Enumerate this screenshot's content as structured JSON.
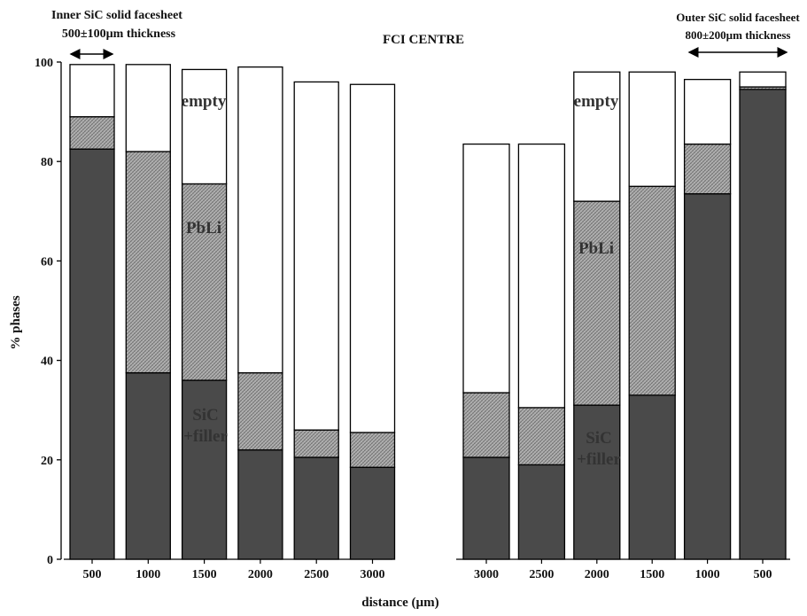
{
  "chart_data": {
    "type": "bar",
    "stacked": true,
    "title": "FCI CENTRE",
    "xlabel": "distance (µm)",
    "ylabel": "% phases",
    "ylim": [
      0,
      100
    ],
    "yticks": [
      0,
      20,
      40,
      60,
      80,
      100
    ],
    "grid": false,
    "legend": "none",
    "series_names": [
      "SiC +filler",
      "PbLi",
      "empty"
    ],
    "colors": {
      "sic": "#4a4a4a",
      "pbli": "#a8a8a8",
      "empty": "#ffffff",
      "stroke": "#000000"
    },
    "panels": [
      {
        "id": "inner",
        "categories": [
          "500",
          "1000",
          "1500",
          "2000",
          "2500",
          "3000"
        ],
        "sic": [
          82.5,
          37.5,
          36.0,
          22.0,
          20.5,
          18.5
        ],
        "pbli": [
          6.5,
          44.5,
          39.5,
          15.5,
          5.5,
          7.0
        ],
        "empty": [
          10.5,
          17.5,
          23.0,
          61.5,
          70.0,
          70.0
        ],
        "region_label": "Inner SiC solid facesheet",
        "region_sub": "500±100µm thickness"
      },
      {
        "id": "outer",
        "categories": [
          "3000",
          "2500",
          "2000",
          "1500",
          "1000",
          "500"
        ],
        "sic": [
          20.5,
          19.0,
          31.0,
          33.0,
          73.5,
          94.5
        ],
        "pbli": [
          13.0,
          11.5,
          41.0,
          42.0,
          10.0,
          0.5
        ],
        "empty": [
          50.0,
          53.0,
          26.0,
          23.0,
          13.0,
          3.0
        ],
        "region_label": "Outer SiC solid facesheet",
        "region_sub": "800±200µm thickness"
      }
    ],
    "annotations": {
      "empty": "empty",
      "pbli": "PbLi",
      "sic_line1": "SiC",
      "sic_line2": "+filler"
    }
  }
}
